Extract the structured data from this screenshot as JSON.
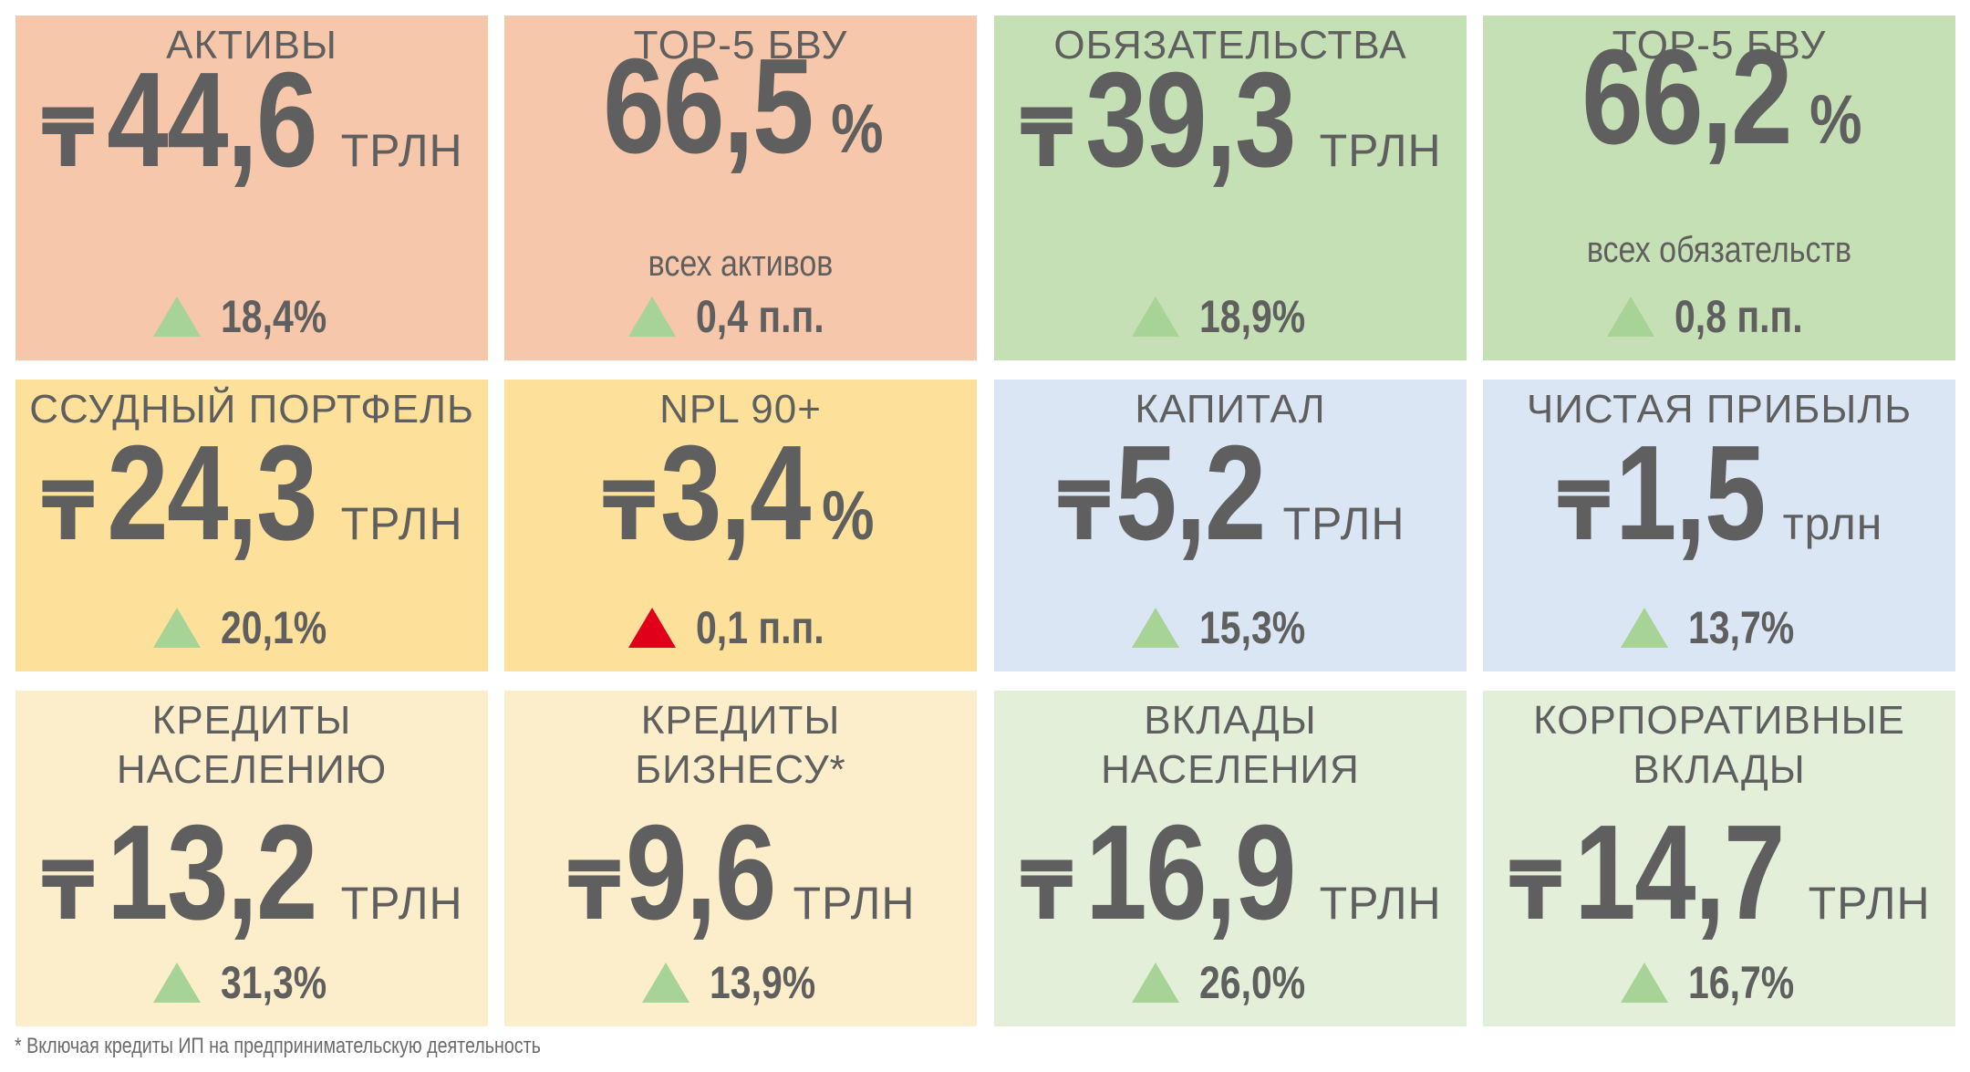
{
  "colors": {
    "salmon": "#f6c7aa",
    "green": "#c4e0b4",
    "gold": "#fde19a",
    "blue": "#dae6f3",
    "cream": "#fdeecb",
    "lightgreen": "#e3efd9",
    "up_green": "#a7d397",
    "up_red": "#e0001a",
    "text": "#5f5f5f"
  },
  "icons": {
    "currency": "₸",
    "change_up": "triangle-up-icon"
  },
  "cards": [
    {
      "title": "АКТИВЫ",
      "currency": "₸",
      "value": "44,6",
      "unit": "ТРЛН",
      "sub": "",
      "change": "18,4%",
      "change_color": "green"
    },
    {
      "title": "TOP-5 БВУ",
      "currency": "",
      "value": "66,5",
      "unit": "%",
      "sub": "всех активов",
      "change": "0,4 п.п.",
      "change_color": "green"
    },
    {
      "title": "ОБЯЗАТЕЛЬСТВА",
      "currency": "₸",
      "value": "39,3",
      "unit": "ТРЛН",
      "sub": "",
      "change": "18,9%",
      "change_color": "green"
    },
    {
      "title": "TOP-5 БВУ",
      "currency": "",
      "value": "66,2",
      "unit": "%",
      "sub": "всех обязательств",
      "change": "0,8 п.п.",
      "change_color": "green"
    },
    {
      "title": "ССУДНЫЙ ПОРТФЕЛЬ",
      "currency": "₸",
      "value": "24,3",
      "unit": "ТРЛН",
      "sub": "",
      "change": "20,1%",
      "change_color": "green"
    },
    {
      "title": "NPL 90+",
      "currency": "₸",
      "value": "3,4",
      "unit": "%",
      "sub": "",
      "change": "0,1 п.п.",
      "change_color": "red"
    },
    {
      "title": "КАПИТАЛ",
      "currency": "₸",
      "value": "5,2",
      "unit": "ТРЛН",
      "sub": "",
      "change": "15,3%",
      "change_color": "green"
    },
    {
      "title": "ЧИСТАЯ ПРИБЫЛЬ",
      "currency": "₸",
      "value": "1,5",
      "unit": "трлн",
      "sub": "",
      "change": "13,7%",
      "change_color": "green"
    },
    {
      "title": "КРЕДИТЫ\nНАСЕЛЕНИЮ",
      "currency": "₸",
      "value": "13,2",
      "unit": "ТРЛН",
      "sub": "",
      "change": "31,3%",
      "change_color": "green"
    },
    {
      "title": "КРЕДИТЫ\nБИЗНЕСУ*",
      "currency": "₸",
      "value": "9,6",
      "unit": "ТРЛН",
      "sub": "",
      "change": "13,9%",
      "change_color": "green"
    },
    {
      "title": "ВКЛАДЫ\nНАСЕЛЕНИЯ",
      "currency": "₸",
      "value": "16,9",
      "unit": "ТРЛН",
      "sub": "",
      "change": "26,0%",
      "change_color": "green"
    },
    {
      "title": "КОРПОРАТИВНЫЕ\nВКЛАДЫ",
      "currency": "₸",
      "value": "14,7",
      "unit": "ТРЛН",
      "sub": "",
      "change": "16,7%",
      "change_color": "green"
    }
  ],
  "footnote": "* Включая кредиты ИП на предпринимательскую деятельность"
}
